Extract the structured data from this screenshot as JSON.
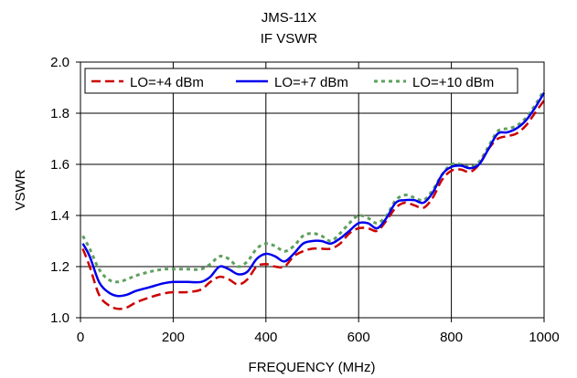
{
  "chart_data": {
    "type": "line",
    "title": "JMS-11X",
    "subtitle": "IF VSWR",
    "xlabel": "FREQUENCY (MHz)",
    "ylabel": "VSWR",
    "xlim": [
      0,
      1000
    ],
    "ylim": [
      1.0,
      2.0
    ],
    "xticks": [
      "0",
      "200",
      "400",
      "600",
      "800",
      "1000"
    ],
    "yticks": [
      "1.0",
      "1.2",
      "1.4",
      "1.6",
      "1.8",
      "2.0"
    ],
    "grid": true,
    "legend_position": "top",
    "series": [
      {
        "name": "LO=+4 dBm",
        "color": "#cc0000",
        "style": "dashed",
        "x": [
          5,
          20,
          40,
          60,
          80,
          100,
          120,
          150,
          180,
          200,
          230,
          260,
          280,
          300,
          320,
          340,
          360,
          380,
          400,
          420,
          440,
          460,
          480,
          500,
          520,
          540,
          560,
          580,
          600,
          620,
          640,
          660,
          680,
          700,
          720,
          740,
          760,
          780,
          800,
          820,
          840,
          860,
          880,
          900,
          920,
          940,
          960,
          980,
          1000
        ],
        "y": [
          1.27,
          1.2,
          1.09,
          1.05,
          1.035,
          1.04,
          1.06,
          1.08,
          1.095,
          1.1,
          1.1,
          1.11,
          1.14,
          1.16,
          1.15,
          1.13,
          1.15,
          1.2,
          1.21,
          1.2,
          1.2,
          1.24,
          1.26,
          1.27,
          1.27,
          1.27,
          1.29,
          1.33,
          1.35,
          1.35,
          1.34,
          1.38,
          1.43,
          1.45,
          1.44,
          1.43,
          1.47,
          1.54,
          1.575,
          1.58,
          1.57,
          1.6,
          1.66,
          1.7,
          1.71,
          1.72,
          1.75,
          1.8,
          1.85
        ]
      },
      {
        "name": "LO=+7 dBm",
        "color": "#0000ee",
        "style": "solid",
        "x": [
          5,
          20,
          40,
          60,
          80,
          100,
          120,
          150,
          180,
          200,
          230,
          260,
          280,
          300,
          320,
          340,
          360,
          380,
          400,
          420,
          440,
          460,
          480,
          500,
          520,
          540,
          560,
          580,
          600,
          620,
          640,
          660,
          680,
          700,
          720,
          740,
          760,
          780,
          800,
          820,
          840,
          860,
          880,
          900,
          920,
          940,
          960,
          980,
          1000
        ],
        "y": [
          1.29,
          1.24,
          1.14,
          1.1,
          1.085,
          1.09,
          1.105,
          1.12,
          1.135,
          1.14,
          1.14,
          1.14,
          1.16,
          1.2,
          1.19,
          1.17,
          1.18,
          1.23,
          1.25,
          1.24,
          1.22,
          1.25,
          1.29,
          1.3,
          1.3,
          1.29,
          1.31,
          1.34,
          1.37,
          1.37,
          1.35,
          1.39,
          1.45,
          1.46,
          1.46,
          1.45,
          1.49,
          1.56,
          1.59,
          1.595,
          1.585,
          1.6,
          1.66,
          1.72,
          1.725,
          1.74,
          1.77,
          1.82,
          1.88
        ]
      },
      {
        "name": "LO=+10 dBm",
        "color": "#5fa05f",
        "style": "dotted",
        "x": [
          5,
          20,
          40,
          60,
          80,
          100,
          120,
          150,
          180,
          200,
          230,
          260,
          280,
          300,
          320,
          340,
          360,
          380,
          400,
          420,
          440,
          460,
          480,
          500,
          520,
          540,
          560,
          580,
          600,
          620,
          640,
          660,
          680,
          700,
          720,
          740,
          760,
          780,
          800,
          820,
          840,
          860,
          880,
          900,
          920,
          940,
          960,
          980,
          1000
        ],
        "y": [
          1.32,
          1.27,
          1.19,
          1.15,
          1.14,
          1.15,
          1.165,
          1.18,
          1.19,
          1.19,
          1.19,
          1.19,
          1.21,
          1.24,
          1.23,
          1.2,
          1.22,
          1.27,
          1.29,
          1.28,
          1.26,
          1.28,
          1.32,
          1.33,
          1.32,
          1.3,
          1.33,
          1.37,
          1.4,
          1.39,
          1.37,
          1.4,
          1.46,
          1.48,
          1.47,
          1.46,
          1.5,
          1.56,
          1.6,
          1.6,
          1.59,
          1.61,
          1.67,
          1.73,
          1.74,
          1.75,
          1.78,
          1.83,
          1.89
        ]
      }
    ]
  }
}
